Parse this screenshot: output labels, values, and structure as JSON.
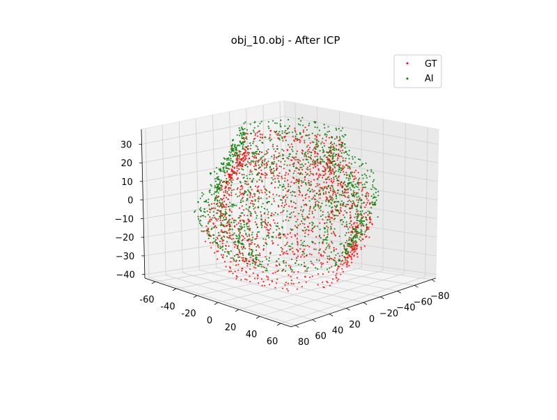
{
  "chart_data": {
    "type": "scatter",
    "projection": "3d",
    "title": "obj_10.obj - After ICP",
    "xlabel": "",
    "ylabel": "",
    "zlabel": "",
    "xlim": [
      -70,
      70
    ],
    "ylim": [
      -85,
      85
    ],
    "zlim": [
      -42,
      38
    ],
    "x_ticks": [
      "-60",
      "-40",
      "-20",
      "0",
      "20",
      "40",
      "60"
    ],
    "x_tick_values": [
      -60,
      -40,
      -20,
      0,
      20,
      40,
      60
    ],
    "y_ticks": [
      "80",
      "60",
      "40",
      "20",
      "0",
      "−20",
      "−40",
      "−60",
      "−80"
    ],
    "y_tick_values": [
      80,
      60,
      40,
      20,
      0,
      -20,
      -40,
      -60,
      -80
    ],
    "z_ticks": [
      "30",
      "20",
      "10",
      "0",
      "−10",
      "−20",
      "−30",
      "−40"
    ],
    "z_tick_values": [
      30,
      20,
      10,
      0,
      -10,
      -20,
      -30,
      -40
    ],
    "grid": true,
    "legend_position": "top-right",
    "series": [
      {
        "name": "GT",
        "color": "#ff0000",
        "point_count_estimate": 3000,
        "z_range": [
          -40,
          30
        ]
      },
      {
        "name": "AI",
        "color": "#008000",
        "point_count_estimate": 3000,
        "z_range": [
          -30,
          35
        ]
      }
    ]
  }
}
